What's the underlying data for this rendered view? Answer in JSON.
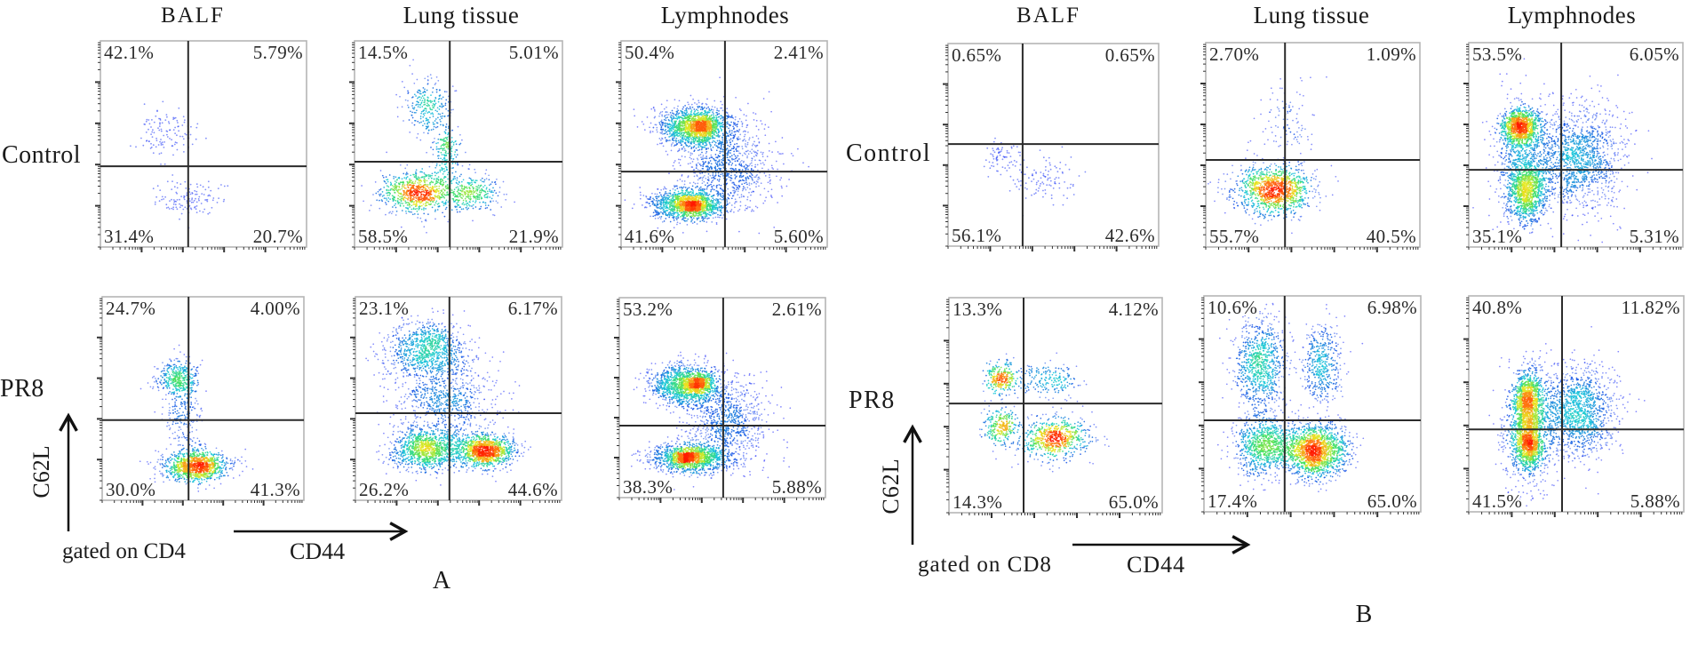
{
  "figure": {
    "panel_letters": [
      "A",
      "B"
    ],
    "row_labels": {
      "control": "Control",
      "infected": "PR8"
    },
    "axis_labels": {
      "y": "C62L",
      "x": "CD44"
    },
    "gating_labels": {
      "A": "gated on CD4",
      "B": "gated on CD8"
    },
    "column_titles": [
      "BALF",
      "Lung tissue",
      "Lymphnodes"
    ]
  },
  "colors": {
    "border": "#b5b5b5",
    "gate_line": "#2b2b2b",
    "density_scale": [
      "#1a1aff",
      "#1f6fe0",
      "#19c9d9",
      "#3fe060",
      "#e8e820",
      "#ff7a10",
      "#ff1a00"
    ]
  },
  "chart_data": [
    {
      "type": "scatter",
      "title": "A — gated on CD4",
      "xlabel": "CD44",
      "ylabel": "C62L",
      "xlim": [
        0,
        5
      ],
      "ylim": [
        0,
        5
      ],
      "grid": false,
      "panels": [
        {
          "id": "A-control-BALF",
          "row": "Control",
          "column": "BALF",
          "gate": {
            "x": 2.13,
            "y": 1.96
          },
          "quadrants": {
            "upper_left": "42.1%",
            "upper_right": "5.79%",
            "lower_left": "31.4%",
            "lower_right": "20.7%"
          },
          "populations": [
            {
              "cx": 1.6,
              "cy": 2.8,
              "sx": 0.35,
              "sy": 0.3,
              "n": 120
            },
            {
              "cx": 2.1,
              "cy": 1.15,
              "sx": 0.45,
              "sy": 0.22,
              "n": 130
            }
          ]
        },
        {
          "id": "A-control-Lung",
          "row": "Control",
          "column": "Lung tissue",
          "gate": {
            "x": 2.29,
            "y": 2.07
          },
          "quadrants": {
            "upper_left": "14.5%",
            "upper_right": "5.01%",
            "lower_left": "58.5%",
            "lower_right": "21.9%"
          },
          "populations": [
            {
              "cx": 1.75,
              "cy": 3.4,
              "sx": 0.3,
              "sy": 0.35,
              "n": 260
            },
            {
              "cx": 1.52,
              "cy": 1.31,
              "sx": 0.45,
              "sy": 0.25,
              "n": 800
            },
            {
              "cx": 2.8,
              "cy": 1.31,
              "sx": 0.35,
              "sy": 0.22,
              "n": 320
            },
            {
              "cx": 2.2,
              "cy": 2.26,
              "sx": 0.15,
              "sy": 0.35,
              "n": 200
            }
          ]
        },
        {
          "id": "A-control-Lymph",
          "row": "Control",
          "column": "Lymphnodes",
          "gate": {
            "x": 2.52,
            "y": 1.83
          },
          "quadrants": {
            "upper_left": "50.4%",
            "upper_right": "2.41%",
            "lower_left": "41.6%",
            "lower_right": "5.60%"
          },
          "populations": [
            {
              "cx": 1.75,
              "cy": 2.9,
              "sx": 0.42,
              "sy": 0.25,
              "n": 1300
            },
            {
              "cx": 2.0,
              "cy": 2.95,
              "sx": 0.18,
              "sy": 0.12,
              "n": 350
            },
            {
              "cx": 1.64,
              "cy": 1.03,
              "sx": 0.45,
              "sy": 0.18,
              "n": 1300
            },
            {
              "cx": 1.75,
              "cy": 1.0,
              "sx": 0.15,
              "sy": 0.08,
              "n": 250
            },
            {
              "cx": 2.6,
              "cy": 2.0,
              "sx": 0.55,
              "sy": 0.6,
              "n": 900
            }
          ]
        },
        {
          "id": "A-PR8-BALF",
          "row": "PR8",
          "column": "BALF",
          "gate": {
            "x": 2.14,
            "y": 1.97
          },
          "quadrants": {
            "upper_left": "24.7%",
            "upper_right": "4.00%",
            "lower_left": "30.0%",
            "lower_right": "41.3%"
          },
          "populations": [
            {
              "cx": 1.87,
              "cy": 3.0,
              "sx": 0.25,
              "sy": 0.22,
              "n": 380
            },
            {
              "cx": 2.33,
              "cy": 0.83,
              "sx": 0.4,
              "sy": 0.18,
              "n": 1100
            },
            {
              "cx": 2.0,
              "cy": 2.0,
              "sx": 0.25,
              "sy": 0.45,
              "n": 200
            }
          ]
        },
        {
          "id": "A-PR8-Lung",
          "row": "PR8",
          "column": "Lung tissue",
          "gate": {
            "x": 2.28,
            "y": 2.14
          },
          "quadrants": {
            "upper_left": "23.1%",
            "upper_right": "6.17%",
            "lower_left": "26.2%",
            "lower_right": "44.6%"
          },
          "populations": [
            {
              "cx": 1.7,
              "cy": 3.7,
              "sx": 0.5,
              "sy": 0.35,
              "n": 900
            },
            {
              "cx": 1.7,
              "cy": 1.22,
              "sx": 0.4,
              "sy": 0.25,
              "n": 1000
            },
            {
              "cx": 3.15,
              "cy": 1.22,
              "sx": 0.35,
              "sy": 0.2,
              "n": 1200
            },
            {
              "cx": 2.2,
              "cy": 2.4,
              "sx": 0.6,
              "sy": 0.6,
              "n": 800
            }
          ]
        },
        {
          "id": "A-PR8-Lymph",
          "row": "PR8",
          "column": "Lymphnodes",
          "gate": {
            "x": 2.52,
            "y": 1.8
          },
          "quadrants": {
            "upper_left": "53.2%",
            "upper_right": "2.61%",
            "lower_left": "38.3%",
            "lower_right": "5.88%"
          },
          "populations": [
            {
              "cx": 1.6,
              "cy": 2.82,
              "sx": 0.42,
              "sy": 0.25,
              "n": 1300
            },
            {
              "cx": 1.95,
              "cy": 2.85,
              "sx": 0.15,
              "sy": 0.1,
              "n": 350
            },
            {
              "cx": 1.72,
              "cy": 1.0,
              "sx": 0.45,
              "sy": 0.17,
              "n": 1300
            },
            {
              "cx": 1.6,
              "cy": 1.0,
              "sx": 0.15,
              "sy": 0.07,
              "n": 250
            },
            {
              "cx": 2.6,
              "cy": 1.9,
              "sx": 0.55,
              "sy": 0.6,
              "n": 900
            }
          ]
        }
      ]
    },
    {
      "type": "scatter",
      "title": "B — gated on CD8",
      "xlabel": "CD44",
      "ylabel": "C62L",
      "xlim": [
        0,
        5
      ],
      "ylim": [
        0,
        5
      ],
      "grid": false,
      "panels": [
        {
          "id": "B-control-BALF",
          "row": "Control",
          "column": "BALF",
          "gate": {
            "x": 1.77,
            "y": 2.52
          },
          "quadrants": {
            "upper_left": "0.65%",
            "upper_right": "0.65%",
            "lower_left": "56.1%",
            "lower_right": "42.6%"
          },
          "populations": [
            {
              "cx": 1.27,
              "cy": 2.2,
              "sx": 0.18,
              "sy": 0.2,
              "n": 70
            },
            {
              "cx": 2.24,
              "cy": 1.69,
              "sx": 0.4,
              "sy": 0.3,
              "n": 110
            }
          ]
        },
        {
          "id": "B-control-Lung",
          "row": "Control",
          "column": "Lung tissue",
          "gate": {
            "x": 1.85,
            "y": 2.13
          },
          "quadrants": {
            "upper_left": "2.70%",
            "upper_right": "1.09%",
            "lower_left": "55.7%",
            "lower_right": "40.5%"
          },
          "populations": [
            {
              "cx": 1.6,
              "cy": 1.4,
              "sx": 0.45,
              "sy": 0.3,
              "n": 1200
            },
            {
              "cx": 1.9,
              "cy": 3.0,
              "sx": 0.35,
              "sy": 0.5,
              "n": 110
            }
          ]
        },
        {
          "id": "B-control-Lymph",
          "row": "Control",
          "column": "Lymphnodes",
          "gate": {
            "x": 2.16,
            "y": 1.89
          },
          "quadrants": {
            "upper_left": "53.5%",
            "upper_right": "6.05%",
            "lower_left": "35.1%",
            "lower_right": "5.31%"
          },
          "populations": [
            {
              "cx": 1.2,
              "cy": 2.93,
              "sx": 0.22,
              "sy": 0.22,
              "n": 1000
            },
            {
              "cx": 1.35,
              "cy": 1.33,
              "sx": 0.22,
              "sy": 0.35,
              "n": 900
            },
            {
              "cx": 2.6,
              "cy": 2.2,
              "sx": 0.5,
              "sy": 0.65,
              "n": 1300
            },
            {
              "cx": 1.3,
              "cy": 2.1,
              "sx": 0.35,
              "sy": 0.7,
              "n": 800
            }
          ]
        },
        {
          "id": "B-PR8-BALF",
          "row": "PR8",
          "column": "BALF",
          "gate": {
            "x": 1.75,
            "y": 2.54
          },
          "quadrants": {
            "upper_left": "13.3%",
            "upper_right": "4.12%",
            "lower_left": "14.3%",
            "lower_right": "65.0%"
          },
          "populations": [
            {
              "cx": 1.22,
              "cy": 3.14,
              "sx": 0.18,
              "sy": 0.2,
              "n": 280
            },
            {
              "cx": 1.22,
              "cy": 2.0,
              "sx": 0.2,
              "sy": 0.2,
              "n": 280
            },
            {
              "cx": 2.48,
              "cy": 1.73,
              "sx": 0.4,
              "sy": 0.25,
              "n": 700
            },
            {
              "cx": 2.3,
              "cy": 3.1,
              "sx": 0.4,
              "sy": 0.2,
              "n": 200
            }
          ]
        },
        {
          "id": "B-PR8-Lung",
          "row": "PR8",
          "column": "Lung tissue",
          "gate": {
            "x": 1.86,
            "y": 2.12
          },
          "quadrants": {
            "upper_left": "10.6%",
            "upper_right": "6.98%",
            "lower_left": "17.4%",
            "lower_right": "65.0%"
          },
          "populations": [
            {
              "cx": 1.3,
              "cy": 3.42,
              "sx": 0.3,
              "sy": 0.5,
              "n": 850
            },
            {
              "cx": 2.73,
              "cy": 3.42,
              "sx": 0.25,
              "sy": 0.5,
              "n": 450
            },
            {
              "cx": 2.56,
              "cy": 1.42,
              "sx": 0.35,
              "sy": 0.3,
              "n": 1600
            },
            {
              "cx": 1.4,
              "cy": 1.55,
              "sx": 0.35,
              "sy": 0.35,
              "n": 900
            }
          ]
        },
        {
          "id": "B-PR8-Lymph",
          "row": "PR8",
          "column": "Lymphnodes",
          "gate": {
            "x": 2.17,
            "y": 1.91
          },
          "quadrants": {
            "upper_left": "40.8%",
            "upper_right": "11.82%",
            "lower_left": "41.5%",
            "lower_right": "5.88%"
          },
          "populations": [
            {
              "cx": 1.38,
              "cy": 2.6,
              "sx": 0.16,
              "sy": 0.3,
              "n": 800
            },
            {
              "cx": 1.38,
              "cy": 1.57,
              "sx": 0.16,
              "sy": 0.3,
              "n": 800
            },
            {
              "cx": 1.4,
              "cy": 2.0,
              "sx": 0.3,
              "sy": 0.65,
              "n": 1000
            },
            {
              "cx": 2.55,
              "cy": 2.3,
              "sx": 0.45,
              "sy": 0.55,
              "n": 1300
            }
          ]
        }
      ]
    }
  ]
}
